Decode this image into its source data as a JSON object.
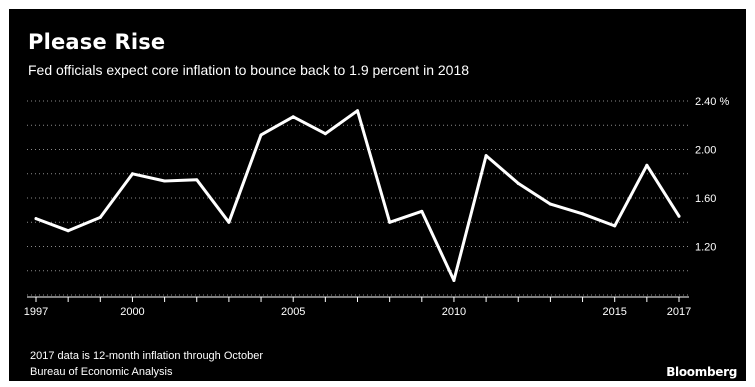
{
  "header": {
    "title": "Please Rise",
    "subtitle": "Fed officials expect core inflation to bounce back to 1.9 percent in 2018"
  },
  "footer": {
    "note": "2017 data is 12-month inflation through October",
    "source": "Bureau of Economic Analysis",
    "brand": "Bloomberg"
  },
  "colors": {
    "background": "#000000",
    "line": "#ffffff",
    "gridline": "#8a8a8a",
    "text": "#ffffff"
  },
  "chart_data": {
    "type": "line",
    "title": "Please Rise",
    "subtitle": "Fed officials expect core inflation to bounce back to 1.9 percent in 2018",
    "xlabel": "",
    "ylabel": "",
    "x": [
      1997,
      1998,
      1999,
      2000,
      2001,
      2002,
      2003,
      2004,
      2005,
      2006,
      2007,
      2008,
      2009,
      2010,
      2011,
      2012,
      2013,
      2014,
      2015,
      2016,
      2017
    ],
    "series": [
      {
        "values": [
          1.43,
          1.33,
          1.44,
          1.8,
          1.74,
          1.75,
          1.4,
          2.12,
          2.27,
          2.13,
          2.32,
          1.4,
          1.49,
          0.92,
          1.95,
          1.72,
          1.55,
          1.47,
          1.37,
          1.87,
          1.45
        ]
      }
    ],
    "xlim": [
      1997,
      2017
    ],
    "ylim": [
      0.8,
      2.4
    ],
    "x_ticks": [
      1997,
      2000,
      2005,
      2010,
      2015,
      2017
    ],
    "y_ticks": [
      {
        "value": 2.4,
        "label": "2.40 %"
      },
      {
        "value": 2.0,
        "label": "2.00"
      },
      {
        "value": 1.6,
        "label": "1.60"
      },
      {
        "value": 1.2,
        "label": "1.20"
      }
    ],
    "y_gridlines": [
      0.8,
      1.0,
      1.2,
      1.4,
      1.6,
      1.8,
      2.0,
      2.2,
      2.4
    ],
    "y_axis_position": "right",
    "grid": true,
    "legend": "none"
  }
}
